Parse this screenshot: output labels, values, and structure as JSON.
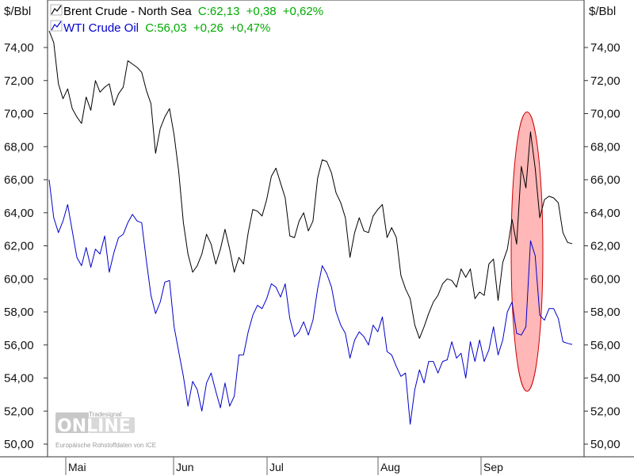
{
  "chart_data": {
    "type": "line",
    "unit_left": "$/Bbl",
    "unit_right": "$/Bbl",
    "ylim": [
      49.4,
      76.1
    ],
    "y_ticks": [
      "74,00",
      "72,00",
      "70,00",
      "68,00",
      "66,00",
      "64,00",
      "62,00",
      "60,00",
      "58,00",
      "56,00",
      "54,00",
      "52,00",
      "50,00"
    ],
    "y_tick_values": [
      74,
      72,
      70,
      68,
      66,
      64,
      62,
      60,
      58,
      56,
      54,
      52,
      50
    ],
    "x_labels": [
      "Mai",
      "Jun",
      "Jul",
      "Aug",
      "Sep"
    ],
    "grid": false,
    "legend_placement": "top-left",
    "series": [
      {
        "name": "Brent Crude - North Sea",
        "close": "C:62,13",
        "change": "+0,38",
        "change_pct": "+0,62%",
        "color": "#000000",
        "values": [
          75.0,
          74.3,
          71.8,
          70.9,
          71.5,
          70.3,
          69.8,
          69.4,
          71.0,
          70.2,
          72.0,
          71.3,
          71.6,
          71.8,
          70.5,
          71.2,
          71.6,
          73.2,
          73.0,
          72.8,
          72.5,
          71.4,
          70.6,
          67.6,
          69.1,
          69.8,
          70.3,
          68.7,
          66.5,
          63.4,
          61.5,
          60.4,
          60.8,
          61.5,
          62.7,
          62.1,
          60.9,
          61.8,
          63.0,
          61.8,
          60.4,
          61.3,
          60.9,
          62.8,
          64.2,
          64.1,
          63.8,
          64.8,
          66.2,
          66.7,
          65.8,
          64.9,
          62.6,
          62.5,
          63.5,
          64.0,
          62.9,
          63.5,
          66.1,
          67.2,
          67.1,
          66.4,
          65.2,
          64.6,
          63.7,
          61.3,
          62.8,
          63.7,
          62.9,
          62.8,
          63.8,
          64.2,
          64.5,
          62.5,
          63.1,
          62.5,
          60.2,
          59.4,
          58.8,
          57.2,
          56.4,
          57.1,
          57.9,
          58.6,
          59.0,
          59.7,
          60.0,
          59.9,
          59.5,
          60.6,
          60.1,
          60.6,
          58.8,
          59.2,
          59.0,
          60.9,
          61.2,
          58.7,
          61.0,
          61.8,
          63.6,
          62.1,
          66.8,
          65.5,
          68.9,
          66.7,
          63.7,
          64.8,
          65.0,
          64.9,
          64.6,
          62.8,
          62.2,
          62.13
        ],
        "text": "Brent Crude - North Sea C:62,13 +0,38 +0,62%"
      },
      {
        "name": "WTI Crude Oil",
        "close": "C:56,03",
        "change": "+0,26",
        "change_pct": "+0,47%",
        "color": "#0000cc",
        "values": [
          66.0,
          63.7,
          62.8,
          63.5,
          64.5,
          62.9,
          61.3,
          60.8,
          61.9,
          60.7,
          61.8,
          61.5,
          62.6,
          60.4,
          61.6,
          62.5,
          62.7,
          63.4,
          63.9,
          63.5,
          63.4,
          61.1,
          59.0,
          57.9,
          58.6,
          59.8,
          59.9,
          57.1,
          55.6,
          54.1,
          52.3,
          53.8,
          53.3,
          52.0,
          53.7,
          54.3,
          53.2,
          52.2,
          53.7,
          52.3,
          52.9,
          55.4,
          55.4,
          56.8,
          57.8,
          58.4,
          58.2,
          58.8,
          59.7,
          59.5,
          58.9,
          59.7,
          57.6,
          56.5,
          56.8,
          57.4,
          56.6,
          57.5,
          59.4,
          60.8,
          60.3,
          59.5,
          58.0,
          57.2,
          56.7,
          55.2,
          56.3,
          56.8,
          56.5,
          56.0,
          57.2,
          56.8,
          57.7,
          55.6,
          55.4,
          54.7,
          54.1,
          54.3,
          51.2,
          53.3,
          54.5,
          53.7,
          55.0,
          55.0,
          54.3,
          55.0,
          55.1,
          56.2,
          55.2,
          55.5,
          54.0,
          56.2,
          55.0,
          56.3,
          55.0,
          55.7,
          57.1,
          55.4,
          56.3,
          58.0,
          58.6,
          56.7,
          56.6,
          57.1,
          62.3,
          61.4,
          57.8,
          57.5,
          58.2,
          58.2,
          57.6,
          56.2,
          56.1,
          56.03
        ],
        "text": "WTI Crude Oil C:56,03 +0,26 +0,47%"
      }
    ],
    "annotation": {
      "shape": "ellipse",
      "color": "#ff8080",
      "around_series_values": [
        53.2,
        70.1
      ]
    }
  },
  "watermark": {
    "brand": "Tradesignal",
    "logo": "ONLINE",
    "source": "Europäische Rohstoffdaten von ICE"
  },
  "colors": {
    "change_green": "#00aa00",
    "brent": "#000000",
    "wti": "#0000cc",
    "ellipse_fill": "#ff9999",
    "ellipse_stroke": "#cc0000"
  }
}
